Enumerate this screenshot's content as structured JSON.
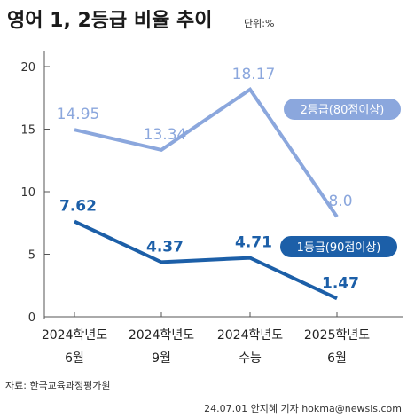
{
  "chart_data": {
    "type": "line",
    "title": "영어 1, 2등급 비율 추이",
    "unit": "단위:%",
    "categories": [
      [
        "2024학년도",
        "6월"
      ],
      [
        "2024학년도",
        "9월"
      ],
      [
        "2024학년도",
        "수능"
      ],
      [
        "2025학년도",
        "6월"
      ]
    ],
    "ylim": [
      0,
      20
    ],
    "yticks": [
      0,
      5,
      10,
      15,
      20
    ],
    "grid": false,
    "series": [
      {
        "name": "2등급(80점이상)",
        "values": [
          14.95,
          13.34,
          18.17,
          8.0
        ],
        "labels": [
          "14.95",
          "13.34",
          "18.17",
          "8.0"
        ],
        "color": "#8ba7dd"
      },
      {
        "name": "1등급(90점이상)",
        "values": [
          7.62,
          4.37,
          4.71,
          1.47
        ],
        "labels": [
          "7.62",
          "4.37",
          "4.71",
          "1.47"
        ],
        "color": "#1c5fa8"
      }
    ]
  },
  "footer": {
    "source": "자료: 한국교육과정평가원",
    "credit": "24.07.01 안지혜 기자 hokma@newsis.com"
  }
}
